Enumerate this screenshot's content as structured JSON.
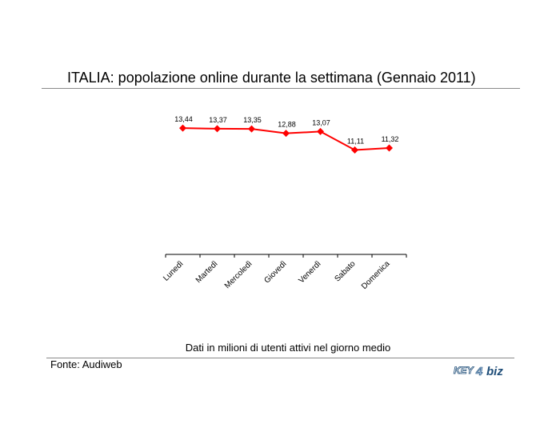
{
  "title": "ITALIA: popolazione online durante la settimana (Gennaio 2011)",
  "caption": "Dati in milioni di utenti attivi nel giorno medio",
  "source": "Fonte: Audiweb",
  "logo": {
    "text_part1": "KEY",
    "text_part2": "4",
    "text_part3": "biz",
    "colors": {
      "blue": "#1f4e79",
      "light_blue": "#9ab8d8"
    }
  },
  "chart_data": {
    "type": "line",
    "categories": [
      "Lunedì",
      "Martedì",
      "Mercoledì",
      "Giovedì",
      "Venerdì",
      "Sabato",
      "Domenica"
    ],
    "series": [
      {
        "values": [
          13.44,
          13.37,
          13.35,
          12.88,
          13.07,
          11.11,
          11.32
        ],
        "value_labels": [
          "13,44",
          "13,37",
          "13,35",
          "12,88",
          "13,07",
          "11,11",
          "11,32"
        ],
        "color": "#ff0000",
        "marker": "diamond"
      }
    ],
    "ylim": [
      0,
      16
    ],
    "grid": false,
    "legend": "none",
    "xlabel": "",
    "ylabel": ""
  }
}
